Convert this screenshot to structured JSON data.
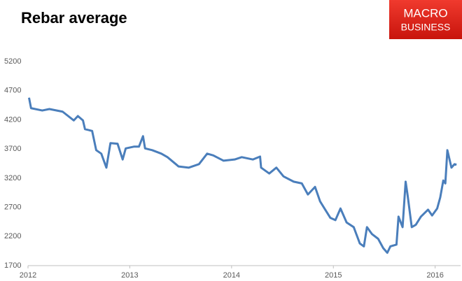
{
  "logo": [
    "MACRO",
    "BUSINESS"
  ],
  "chart_data": {
    "type": "line",
    "title": "Rebar average",
    "x": [
      2012.01,
      2012.03,
      2012.14,
      2012.21,
      2012.34,
      2012.45,
      2012.49,
      2012.54,
      2012.56,
      2012.63,
      2012.67,
      2012.72,
      2012.77,
      2012.81,
      2012.88,
      2012.93,
      2012.96,
      2013.04,
      2013.09,
      2013.13,
      2013.15,
      2013.22,
      2013.31,
      2013.37,
      2013.48,
      2013.58,
      2013.68,
      2013.76,
      2013.82,
      2013.92,
      2014.03,
      2014.1,
      2014.21,
      2014.28,
      2014.29,
      2014.37,
      2014.44,
      2014.51,
      2014.61,
      2014.69,
      2014.75,
      2014.82,
      2014.87,
      2014.92,
      2014.97,
      2015.02,
      2015.07,
      2015.13,
      2015.2,
      2015.26,
      2015.3,
      2015.33,
      2015.38,
      2015.44,
      2015.49,
      2015.53,
      2015.56,
      2015.62,
      2015.64,
      2015.68,
      2015.71,
      2015.73,
      2015.77,
      2015.81,
      2015.86,
      2015.93,
      2015.97,
      2016.02,
      2016.05,
      2016.08,
      2016.1,
      2016.12,
      2016.16,
      2016.19,
      2016.21
    ],
    "series": [
      {
        "name": "Rebar average",
        "color": "#4a7ebb",
        "values": [
          4580,
          4400,
          4360,
          4385,
          4340,
          4190,
          4265,
          4190,
          4040,
          4010,
          3680,
          3620,
          3380,
          3800,
          3790,
          3520,
          3710,
          3740,
          3740,
          3920,
          3710,
          3680,
          3620,
          3560,
          3400,
          3380,
          3440,
          3620,
          3590,
          3500,
          3520,
          3560,
          3520,
          3570,
          3380,
          3280,
          3380,
          3230,
          3140,
          3110,
          2920,
          3050,
          2800,
          2660,
          2520,
          2480,
          2680,
          2440,
          2360,
          2080,
          2030,
          2360,
          2240,
          2160,
          2000,
          1920,
          2030,
          2060,
          2540,
          2360,
          3140,
          2900,
          2360,
          2400,
          2540,
          2660,
          2560,
          2680,
          2870,
          3160,
          3110,
          3680,
          3380,
          3440,
          3430
        ]
      }
    ],
    "xlim": [
      2012,
      2016.25
    ],
    "xticks": [
      2012,
      2013,
      2014,
      2015,
      2016
    ],
    "ylim": [
      1700,
      5200
    ],
    "yticks": [
      1700,
      2200,
      2700,
      3200,
      3700,
      4200,
      4700,
      5200
    ],
    "grid": false
  }
}
